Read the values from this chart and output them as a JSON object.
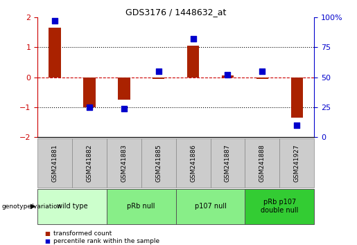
{
  "title": "GDS3176 / 1448632_at",
  "samples": [
    "GSM241881",
    "GSM241882",
    "GSM241883",
    "GSM241885",
    "GSM241886",
    "GSM241887",
    "GSM241888",
    "GSM241927"
  ],
  "transformed_counts": [
    1.65,
    -1.0,
    -0.75,
    -0.05,
    1.05,
    0.05,
    -0.05,
    -1.35
  ],
  "percentile_ranks": [
    97,
    25,
    24,
    55,
    82,
    52,
    55,
    10
  ],
  "ylim_left": [
    -2,
    2
  ],
  "ylim_right": [
    0,
    100
  ],
  "left_yticks": [
    -2,
    -1,
    0,
    1,
    2
  ],
  "right_yticks": [
    0,
    25,
    50,
    75,
    100
  ],
  "bar_color": "#aa2200",
  "dot_color": "#0000cc",
  "zero_line_color": "#cc0000",
  "dotted_line_color": "#000000",
  "background_color": "#ffffff",
  "genotype_groups": [
    {
      "label": "wild type",
      "start": 0,
      "end": 2,
      "color": "#ccffcc"
    },
    {
      "label": "pRb null",
      "start": 2,
      "end": 4,
      "color": "#88ee88"
    },
    {
      "label": "p107 null",
      "start": 4,
      "end": 6,
      "color": "#88ee88"
    },
    {
      "label": "pRb p107\ndouble null",
      "start": 6,
      "end": 8,
      "color": "#33cc33"
    }
  ],
  "legend_items": [
    {
      "label": "transformed count",
      "color": "#aa2200"
    },
    {
      "label": "percentile rank within the sample",
      "color": "#0000cc"
    }
  ],
  "bar_width": 0.35,
  "dot_size": 30,
  "sample_box_color": "#cccccc",
  "sample_box_edge": "#888888",
  "geno_box_edge": "#555555"
}
